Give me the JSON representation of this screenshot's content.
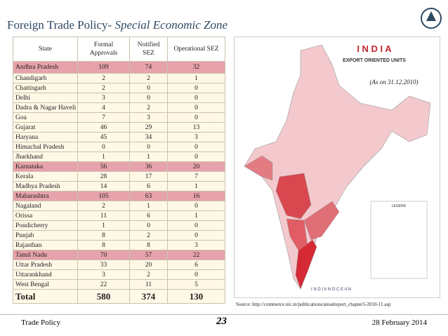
{
  "header": {
    "title": "Foreign Trade Policy-",
    "title_italic": "Special Economic Zone"
  },
  "table": {
    "columns": [
      "State",
      "Formal Approvals",
      "Notified SEZ",
      "Operational SEZ"
    ],
    "rows": [
      [
        "Andhra Pradesh",
        109,
        74,
        32
      ],
      [
        "Chandigarh",
        2,
        2,
        1
      ],
      [
        "Chattisgarh",
        2,
        0,
        0
      ],
      [
        "Delhi",
        3,
        0,
        0
      ],
      [
        "Dadra & Nagar Haveli",
        4,
        2,
        0
      ],
      [
        "Goa",
        7,
        3,
        0
      ],
      [
        "Gujarat",
        46,
        29,
        13
      ],
      [
        "Haryana",
        45,
        34,
        3
      ],
      [
        "Himachal Pradesh",
        0,
        0,
        0
      ],
      [
        "Jharkhand",
        1,
        1,
        0
      ],
      [
        "Karnataka",
        56,
        36,
        20
      ],
      [
        "Kerala",
        28,
        17,
        7
      ],
      [
        "Madhya Pradesh",
        14,
        6,
        1
      ],
      [
        "Maharashtra",
        105,
        63,
        16
      ],
      [
        "Nagaland",
        2,
        1,
        0
      ],
      [
        "Orissa",
        11,
        6,
        1
      ],
      [
        "Pondicherry",
        1,
        0,
        0
      ],
      [
        "Punjab",
        8,
        2,
        0
      ],
      [
        "Rajasthan",
        8,
        8,
        3
      ],
      [
        "Tamil Nadu",
        70,
        57,
        22
      ],
      [
        "Uttar Pradesh",
        33,
        20,
        6
      ],
      [
        "Uttarankhand",
        3,
        2,
        0
      ],
      [
        "West Bengal",
        22,
        11,
        5
      ]
    ],
    "total": [
      "Total",
      580,
      374,
      130
    ]
  },
  "map": {
    "title": "I N D I A",
    "subtitle": "EXPORT ORIENTED UNITS",
    "note": "(As on 31.12.2010)",
    "legend_title": "LEGEND",
    "ocean": "I N D I A N   O C E A N"
  },
  "source": "Source: http://commerce.nic.in/publications/anualreport_chapter5-2010-11.asp",
  "footer": {
    "left": "Trade Policy",
    "page": "23",
    "date": "28 February 2014"
  }
}
